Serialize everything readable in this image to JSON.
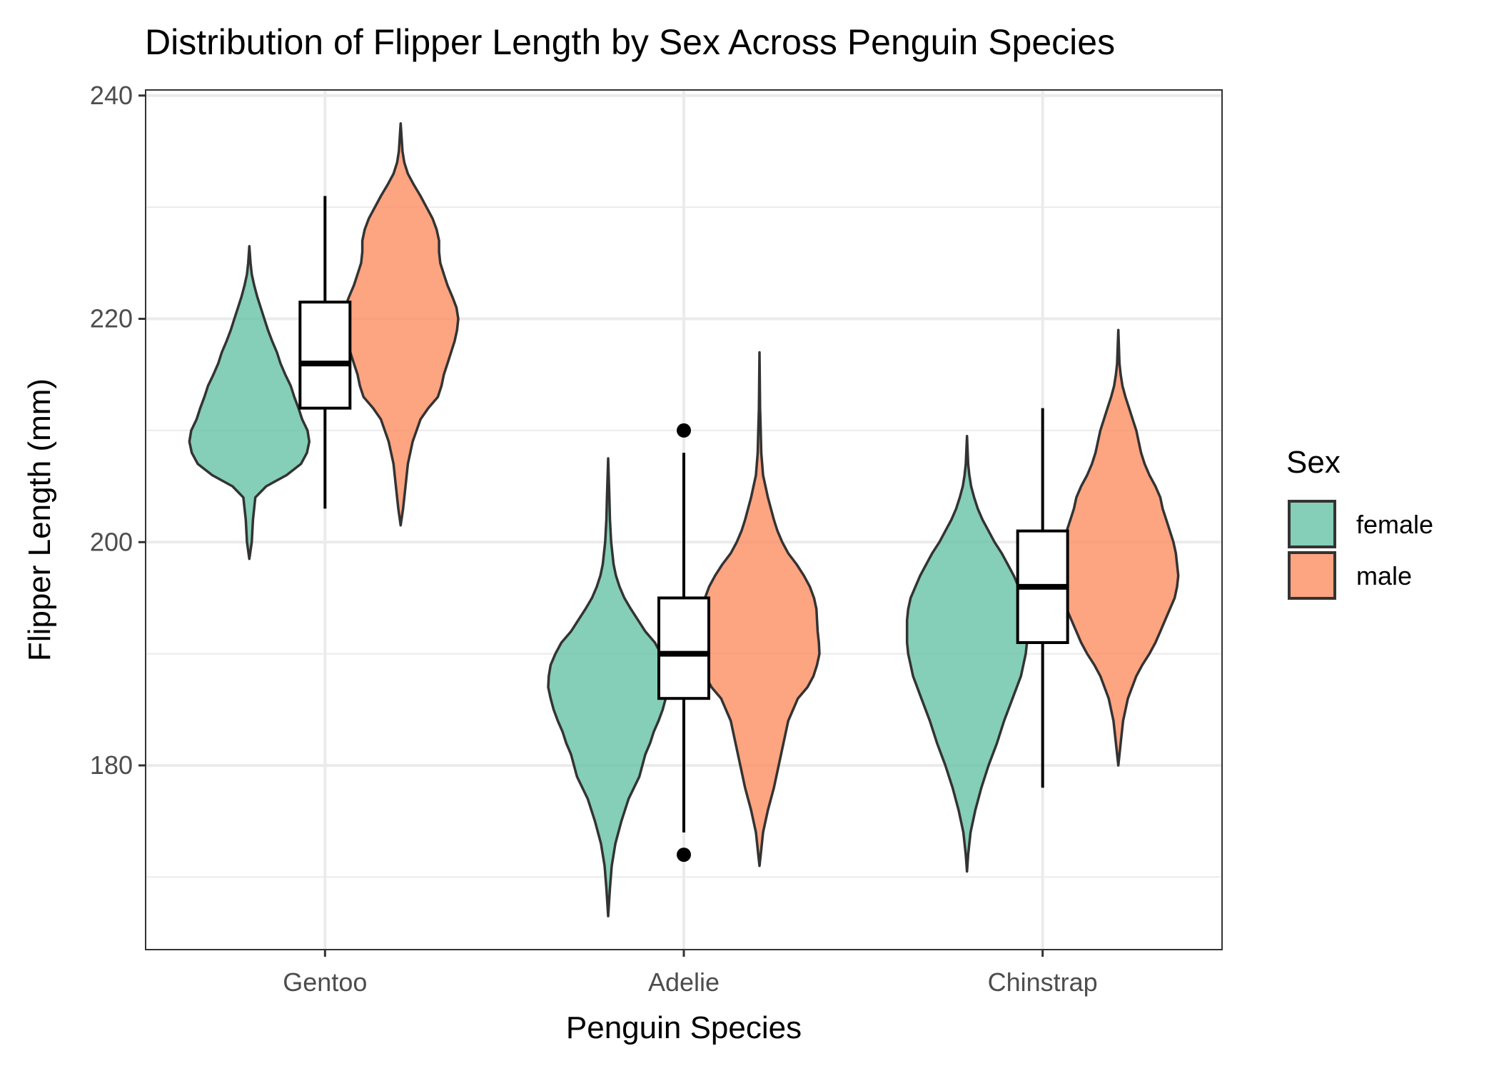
{
  "colors": {
    "female": "#66c2a5",
    "male": "#fc8d62"
  },
  "chart_data": {
    "type": "violin",
    "title": "Distribution of Flipper Length by Sex Across Penguin Species",
    "xlabel": "Penguin Species",
    "ylabel": "Flipper Length (mm)",
    "ylim": [
      163.5,
      240.5
    ],
    "yticks": [
      180,
      200,
      220,
      240
    ],
    "categories": [
      "Gentoo",
      "Adelie",
      "Chinstrap"
    ],
    "grid": true,
    "legend": {
      "title": "Sex",
      "position": "right",
      "entries": [
        {
          "key": "female",
          "label": "female",
          "color": "#66c2a5"
        },
        {
          "key": "male",
          "label": "male",
          "color": "#fc8d62"
        }
      ]
    },
    "violins": [
      {
        "species": "Gentoo",
        "sex": "female",
        "min": 198.5,
        "max": 226.5,
        "profile": [
          [
            198.5,
            0
          ],
          [
            200,
            0.04
          ],
          [
            202,
            0.06
          ],
          [
            204,
            0.1
          ],
          [
            205,
            0.28
          ],
          [
            206,
            0.62
          ],
          [
            207,
            0.86
          ],
          [
            208,
            0.96
          ],
          [
            209,
            1.0
          ],
          [
            210,
            0.97
          ],
          [
            211,
            0.88
          ],
          [
            212,
            0.82
          ],
          [
            213,
            0.75
          ],
          [
            214,
            0.69
          ],
          [
            215,
            0.6
          ],
          [
            216,
            0.52
          ],
          [
            217,
            0.46
          ],
          [
            218,
            0.38
          ],
          [
            219,
            0.31
          ],
          [
            220,
            0.25
          ],
          [
            221,
            0.19
          ],
          [
            222,
            0.13
          ],
          [
            223,
            0.08
          ],
          [
            224,
            0.04
          ],
          [
            225,
            0.02
          ],
          [
            226.5,
            0
          ]
        ]
      },
      {
        "species": "Gentoo",
        "sex": "male",
        "min": 201.5,
        "max": 237.5,
        "profile": [
          [
            201.5,
            0
          ],
          [
            203,
            0.04
          ],
          [
            205,
            0.08
          ],
          [
            207,
            0.12
          ],
          [
            209,
            0.2
          ],
          [
            211,
            0.33
          ],
          [
            212,
            0.46
          ],
          [
            213,
            0.62
          ],
          [
            214,
            0.68
          ],
          [
            215,
            0.72
          ],
          [
            216,
            0.78
          ],
          [
            217,
            0.84
          ],
          [
            218,
            0.9
          ],
          [
            219,
            0.94
          ],
          [
            220,
            0.96
          ],
          [
            221,
            0.93
          ],
          [
            222,
            0.86
          ],
          [
            223,
            0.78
          ],
          [
            224,
            0.72
          ],
          [
            225,
            0.66
          ],
          [
            226,
            0.64
          ],
          [
            227,
            0.64
          ],
          [
            228,
            0.6
          ],
          [
            229,
            0.53
          ],
          [
            230,
            0.43
          ],
          [
            231,
            0.33
          ],
          [
            232,
            0.22
          ],
          [
            233,
            0.12
          ],
          [
            234,
            0.06
          ],
          [
            235,
            0.03
          ],
          [
            237.5,
            0
          ]
        ]
      },
      {
        "species": "Adelie",
        "sex": "female",
        "min": 166.5,
        "max": 207.5,
        "profile": [
          [
            166.5,
            0
          ],
          [
            169,
            0.03
          ],
          [
            171,
            0.06
          ],
          [
            173,
            0.12
          ],
          [
            175,
            0.22
          ],
          [
            177,
            0.34
          ],
          [
            179,
            0.52
          ],
          [
            181,
            0.62
          ],
          [
            182,
            0.7
          ],
          [
            183,
            0.76
          ],
          [
            184,
            0.84
          ],
          [
            185,
            0.91
          ],
          [
            186,
            0.96
          ],
          [
            187,
            1.0
          ],
          [
            188,
            0.99
          ],
          [
            189,
            0.96
          ],
          [
            190,
            0.88
          ],
          [
            191,
            0.78
          ],
          [
            192,
            0.62
          ],
          [
            193,
            0.5
          ],
          [
            194,
            0.38
          ],
          [
            195,
            0.27
          ],
          [
            196,
            0.19
          ],
          [
            197,
            0.13
          ],
          [
            198,
            0.09
          ],
          [
            200,
            0.05
          ],
          [
            202,
            0.03
          ],
          [
            204,
            0.02
          ],
          [
            207.5,
            0
          ]
        ]
      },
      {
        "species": "Adelie",
        "sex": "male",
        "min": 171,
        "max": 217,
        "profile": [
          [
            171,
            0
          ],
          [
            172,
            0.02
          ],
          [
            174,
            0.06
          ],
          [
            176,
            0.14
          ],
          [
            178,
            0.24
          ],
          [
            180,
            0.32
          ],
          [
            182,
            0.4
          ],
          [
            184,
            0.48
          ],
          [
            186,
            0.64
          ],
          [
            187,
            0.8
          ],
          [
            188,
            0.9
          ],
          [
            189,
            0.96
          ],
          [
            190,
            1.0
          ],
          [
            191,
            0.99
          ],
          [
            192,
            0.97
          ],
          [
            193,
            0.96
          ],
          [
            194,
            0.95
          ],
          [
            195,
            0.91
          ],
          [
            196,
            0.84
          ],
          [
            197,
            0.74
          ],
          [
            198,
            0.62
          ],
          [
            199,
            0.48
          ],
          [
            200,
            0.38
          ],
          [
            201,
            0.3
          ],
          [
            202,
            0.24
          ],
          [
            204,
            0.14
          ],
          [
            206,
            0.06
          ],
          [
            208,
            0.03
          ],
          [
            210,
            0.02
          ],
          [
            212,
            0.01
          ],
          [
            217,
            0
          ]
        ]
      },
      {
        "species": "Chinstrap",
        "sex": "female",
        "min": 170.5,
        "max": 209.5,
        "profile": [
          [
            170.5,
            0
          ],
          [
            172,
            0.02
          ],
          [
            174,
            0.06
          ],
          [
            176,
            0.14
          ],
          [
            178,
            0.24
          ],
          [
            180,
            0.36
          ],
          [
            182,
            0.5
          ],
          [
            184,
            0.62
          ],
          [
            186,
            0.76
          ],
          [
            188,
            0.9
          ],
          [
            190,
            0.98
          ],
          [
            191,
            1.0
          ],
          [
            192,
            1.0
          ],
          [
            193,
            1.0
          ],
          [
            194,
            0.98
          ],
          [
            195,
            0.94
          ],
          [
            196,
            0.86
          ],
          [
            197,
            0.78
          ],
          [
            198,
            0.68
          ],
          [
            199,
            0.58
          ],
          [
            200,
            0.46
          ],
          [
            201,
            0.36
          ],
          [
            202,
            0.26
          ],
          [
            203,
            0.18
          ],
          [
            204,
            0.12
          ],
          [
            205,
            0.07
          ],
          [
            206,
            0.04
          ],
          [
            207,
            0.02
          ],
          [
            209.5,
            0
          ]
        ]
      },
      {
        "species": "Chinstrap",
        "sex": "male",
        "min": 180,
        "max": 219,
        "profile": [
          [
            180,
            0
          ],
          [
            182,
            0.04
          ],
          [
            184,
            0.08
          ],
          [
            186,
            0.16
          ],
          [
            188,
            0.3
          ],
          [
            189,
            0.4
          ],
          [
            190,
            0.52
          ],
          [
            191,
            0.62
          ],
          [
            192,
            0.7
          ],
          [
            193,
            0.78
          ],
          [
            194,
            0.86
          ],
          [
            195,
            0.94
          ],
          [
            196,
            0.98
          ],
          [
            197,
            1.0
          ],
          [
            198,
            0.98
          ],
          [
            199,
            0.96
          ],
          [
            200,
            0.92
          ],
          [
            201,
            0.86
          ],
          [
            202,
            0.8
          ],
          [
            203,
            0.74
          ],
          [
            204,
            0.7
          ],
          [
            205,
            0.62
          ],
          [
            206,
            0.52
          ],
          [
            207,
            0.44
          ],
          [
            208,
            0.38
          ],
          [
            209,
            0.34
          ],
          [
            210,
            0.3
          ],
          [
            211,
            0.24
          ],
          [
            212,
            0.18
          ],
          [
            213,
            0.12
          ],
          [
            214,
            0.07
          ],
          [
            215,
            0.04
          ],
          [
            216,
            0.02
          ],
          [
            219,
            0
          ]
        ]
      }
    ],
    "boxes": [
      {
        "species": "Gentoo",
        "lower_whisker": 203,
        "q1": 212,
        "median": 216,
        "q3": 221.5,
        "upper_whisker": 231,
        "outliers": []
      },
      {
        "species": "Adelie",
        "lower_whisker": 174,
        "q1": 186,
        "median": 190,
        "q3": 195,
        "upper_whisker": 208,
        "outliers": [
          172,
          210
        ]
      },
      {
        "species": "Chinstrap",
        "lower_whisker": 178,
        "q1": 191,
        "median": 196,
        "q3": 201,
        "upper_whisker": 212,
        "outliers": []
      }
    ]
  }
}
